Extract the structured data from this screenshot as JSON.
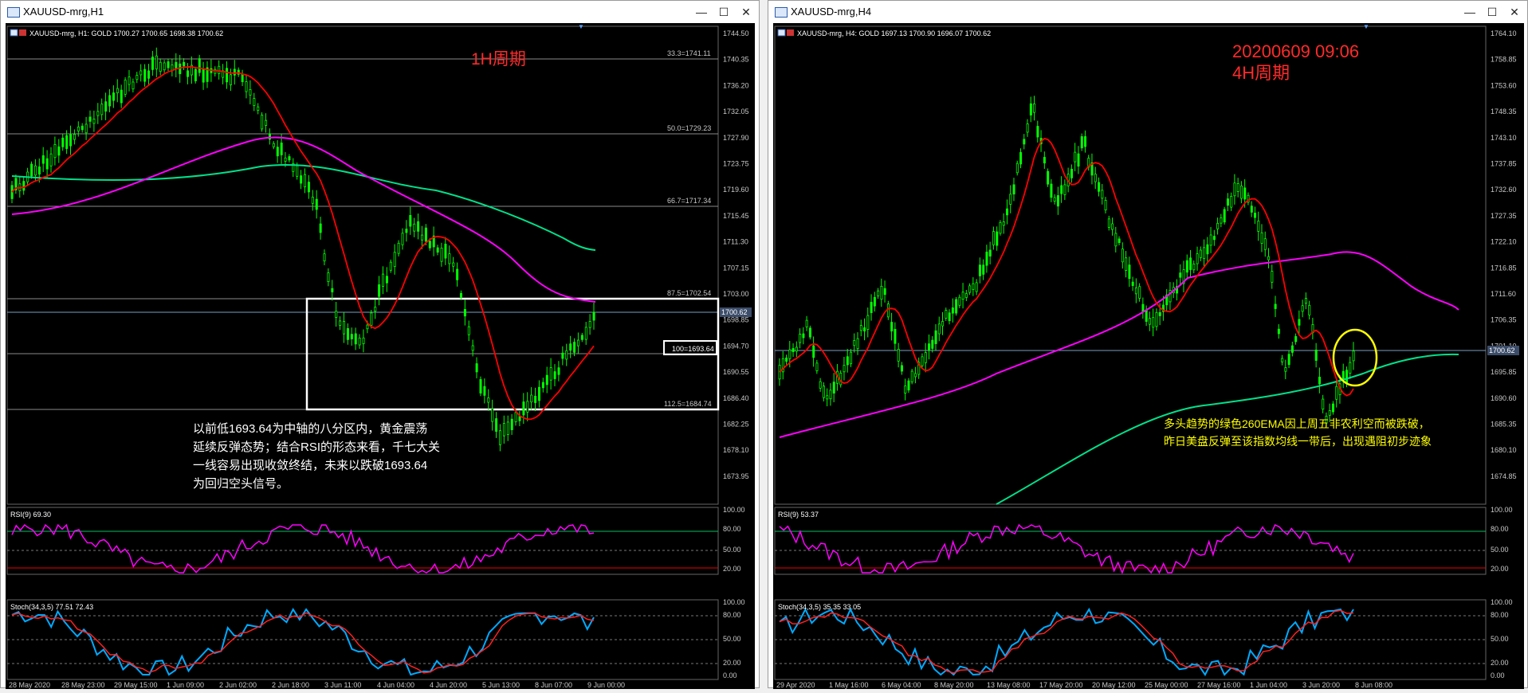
{
  "windows": [
    {
      "id": "w1",
      "title": "XAUUSD-mrg,H1",
      "symbol_info": "XAUUSD-mrg, H1:  GOLD  1700.27  1700.65  1698.38  1700.62",
      "period_note": "1H周期",
      "annotation_lines": [
        "以前低1693.64为中轴的八分区内，黄金震荡",
        "延续反弹态势；结合RSI的形态来看，千七大关",
        "一线容易出现收敛终结，未来以跌破1693.64",
        "为回归空头信号。"
      ],
      "price_axis": [
        "1744.50",
        "1740.35",
        "1736.20",
        "1732.05",
        "1727.90",
        "1723.75",
        "1719.60",
        "1715.45",
        "1711.30",
        "1707.15",
        "1703.00",
        "1698.85",
        "1694.70",
        "1690.55",
        "1686.40",
        "1682.25",
        "1678.10",
        "1673.95"
      ],
      "current_price": "1700.62",
      "fib_levels": [
        {
          "label": "33.3=1741.11"
        },
        {
          "label": "50.0=1729.23"
        },
        {
          "label": "66.7=1717.34"
        },
        {
          "label": "87.5=1702.54"
        },
        {
          "label": "100=1693.64"
        },
        {
          "label": "112.5=1684.74"
        }
      ],
      "rsi_label": "RSI(9) 69.30",
      "stoch_label": "Stoch(34,3,5) 77.51 72.43",
      "osc_axis": [
        "100.00",
        "80.00",
        "50.00",
        "20.00",
        "0.00"
      ],
      "time_axis": [
        "28 May 2020",
        "28 May 23:00",
        "29 May 15:00",
        "1 Jun 09:00",
        "2 Jun 02:00",
        "2 Jun 18:00",
        "3 Jun 11:00",
        "4 Jun 04:00",
        "4 Jun 20:00",
        "5 Jun 13:00",
        "8 Jun 07:00",
        "9 Jun 00:00"
      ]
    },
    {
      "id": "w2",
      "title": "XAUUSD-mrg,H4",
      "symbol_info": "XAUUSD-mrg, H4:  GOLD  1697.13  1700.90  1696.07  1700.62",
      "date_note": "20200609 09:06",
      "period_note": "4H周期",
      "annotation_lines": [
        "多头趋势的绿色260EMA因上周五非农利空而被跌破，",
        "昨日美盘反弹至该指数均线一带后，出现遇阻初步迹象"
      ],
      "price_axis": [
        "1764.10",
        "1758.85",
        "1753.60",
        "1748.35",
        "1743.10",
        "1737.85",
        "1732.60",
        "1727.35",
        "1722.10",
        "1716.85",
        "1711.60",
        "1706.35",
        "1701.10",
        "1695.85",
        "1690.60",
        "1685.35",
        "1680.10",
        "1674.85"
      ],
      "current_price": "1700.62",
      "rsi_label": "RSI(9) 53.37",
      "stoch_label": "Stoch(34,3,5) 35.35 33.05",
      "osc_axis": [
        "100.00",
        "80.00",
        "50.00",
        "20.00",
        "0.00"
      ],
      "time_axis": [
        "29 Apr 2020",
        "1 May 16:00",
        "6 May 04:00",
        "8 May 20:00",
        "13 May 08:00",
        "17 May 20:00",
        "20 May 12:00",
        "25 May 00:00",
        "27 May 16:00",
        "1 Jun 04:00",
        "3 Jun 20:00",
        "8 Jun 08:00"
      ]
    }
  ],
  "colors": {
    "candle": "#00ff00",
    "ema_red": "#ff0000",
    "ma_magenta": "#ff00ff",
    "ema_green": "#00e08a",
    "rsi_line": "#ff00ff",
    "stoch_main": "#00aaff",
    "stoch_signal": "#ff2020",
    "note_red": "#ff2a2a",
    "note_yellow": "#ffff00",
    "annotation_white": "#ffffff"
  }
}
